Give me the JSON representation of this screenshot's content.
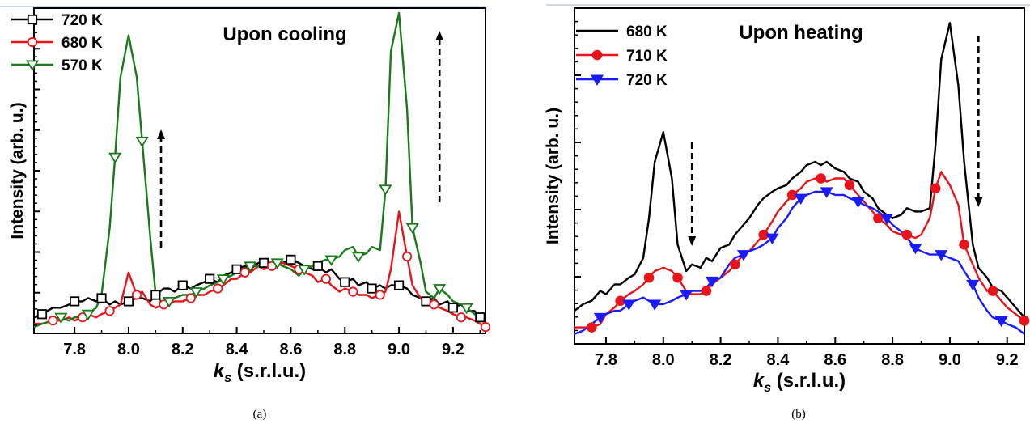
{
  "chart_data": [
    {
      "type": "line",
      "panel_label": "(a)",
      "title": "Upon cooling",
      "xlabel_main": "k",
      "xlabel_sub": "s",
      "xlabel_rest": " (s.r.l.u.)",
      "ylabel": "Intensity (arb. u.)",
      "xlim": [
        7.65,
        9.32
      ],
      "ylim": [
        0,
        1
      ],
      "xticks": [
        "7.8",
        "8.0",
        "8.2",
        "8.4",
        "8.6",
        "8.8",
        "9.0",
        "9.2"
      ],
      "legend_position": "top-left",
      "series": [
        {
          "name": "720 K",
          "color": "#000000",
          "marker": "open-square",
          "x": [
            7.65,
            7.68,
            7.72,
            7.75,
            7.78,
            7.8,
            7.83,
            7.85,
            7.88,
            7.9,
            7.93,
            7.95,
            7.97,
            8.0,
            8.03,
            8.05,
            8.08,
            8.1,
            8.13,
            8.15,
            8.17,
            8.2,
            8.23,
            8.25,
            8.28,
            8.3,
            8.33,
            8.35,
            8.38,
            8.4,
            8.43,
            8.45,
            8.48,
            8.5,
            8.53,
            8.55,
            8.57,
            8.6,
            8.63,
            8.65,
            8.68,
            8.7,
            8.73,
            8.75,
            8.78,
            8.8,
            8.83,
            8.85,
            8.88,
            8.9,
            8.93,
            8.95,
            8.97,
            9.0,
            9.03,
            9.05,
            9.08,
            9.1,
            9.13,
            9.15,
            9.18,
            9.2,
            9.23,
            9.25,
            9.28,
            9.3,
            9.32
          ],
          "y": [
            0.05,
            0.06,
            0.08,
            0.08,
            0.09,
            0.1,
            0.1,
            0.11,
            0.1,
            0.11,
            0.09,
            0.1,
            0.09,
            0.1,
            0.11,
            0.11,
            0.1,
            0.12,
            0.14,
            0.14,
            0.13,
            0.15,
            0.14,
            0.15,
            0.16,
            0.17,
            0.16,
            0.18,
            0.19,
            0.2,
            0.21,
            0.2,
            0.22,
            0.22,
            0.21,
            0.22,
            0.22,
            0.23,
            0.22,
            0.21,
            0.2,
            0.21,
            0.19,
            0.2,
            0.17,
            0.16,
            0.17,
            0.15,
            0.16,
            0.14,
            0.15,
            0.14,
            0.15,
            0.15,
            0.14,
            0.12,
            0.11,
            0.1,
            0.11,
            0.09,
            0.1,
            0.08,
            0.09,
            0.07,
            0.07,
            0.05,
            0.04
          ]
        },
        {
          "name": "680 K",
          "color": "#e8141b",
          "marker": "open-circle",
          "x": [
            7.65,
            7.68,
            7.72,
            7.75,
            7.78,
            7.8,
            7.83,
            7.85,
            7.88,
            7.9,
            7.93,
            7.95,
            7.97,
            8.0,
            8.03,
            8.05,
            8.08,
            8.1,
            8.13,
            8.15,
            8.17,
            8.2,
            8.23,
            8.25,
            8.28,
            8.3,
            8.33,
            8.35,
            8.38,
            8.4,
            8.43,
            8.45,
            8.48,
            8.5,
            8.53,
            8.55,
            8.57,
            8.6,
            8.63,
            8.65,
            8.68,
            8.7,
            8.73,
            8.75,
            8.78,
            8.8,
            8.83,
            8.85,
            8.88,
            8.9,
            8.93,
            8.95,
            8.97,
            9.0,
            9.03,
            9.05,
            9.08,
            9.1,
            9.13,
            9.15,
            9.18,
            9.2,
            9.23,
            9.25,
            9.28,
            9.3,
            9.32
          ],
          "y": [
            0.03,
            0.03,
            0.04,
            0.04,
            0.05,
            0.04,
            0.05,
            0.06,
            0.05,
            0.06,
            0.07,
            0.08,
            0.09,
            0.19,
            0.12,
            0.13,
            0.09,
            0.08,
            0.09,
            0.09,
            0.1,
            0.1,
            0.11,
            0.12,
            0.12,
            0.13,
            0.14,
            0.15,
            0.17,
            0.17,
            0.19,
            0.19,
            0.21,
            0.2,
            0.21,
            0.21,
            0.22,
            0.21,
            0.2,
            0.19,
            0.18,
            0.16,
            0.17,
            0.15,
            0.13,
            0.14,
            0.13,
            0.12,
            0.12,
            0.11,
            0.12,
            0.13,
            0.2,
            0.38,
            0.24,
            0.15,
            0.11,
            0.1,
            0.09,
            0.08,
            0.07,
            0.06,
            0.05,
            0.05,
            0.04,
            0.03,
            0.02
          ]
        },
        {
          "name": "570 K",
          "color": "#1a7a1a",
          "marker": "open-triangle-down",
          "x": [
            7.65,
            7.68,
            7.72,
            7.75,
            7.78,
            7.8,
            7.83,
            7.85,
            7.88,
            7.9,
            7.93,
            7.95,
            7.97,
            8.0,
            8.03,
            8.05,
            8.08,
            8.1,
            8.13,
            8.15,
            8.17,
            8.2,
            8.23,
            8.25,
            8.28,
            8.3,
            8.33,
            8.35,
            8.38,
            8.4,
            8.43,
            8.45,
            8.48,
            8.5,
            8.53,
            8.55,
            8.57,
            8.6,
            8.63,
            8.65,
            8.68,
            8.7,
            8.73,
            8.75,
            8.78,
            8.8,
            8.83,
            8.85,
            8.88,
            8.9,
            8.93,
            8.95,
            8.97,
            9.0,
            9.03,
            9.05,
            9.08,
            9.1,
            9.13,
            9.15,
            9.18,
            9.2,
            9.23,
            9.25,
            9.28,
            9.3,
            9.32
          ],
          "y": [
            0.02,
            0.03,
            0.04,
            0.05,
            0.04,
            0.05,
            0.05,
            0.06,
            0.08,
            0.12,
            0.33,
            0.55,
            0.8,
            0.93,
            0.8,
            0.6,
            0.3,
            0.12,
            0.09,
            0.1,
            0.11,
            0.12,
            0.12,
            0.13,
            0.14,
            0.15,
            0.16,
            0.17,
            0.18,
            0.19,
            0.2,
            0.21,
            0.21,
            0.22,
            0.21,
            0.22,
            0.21,
            0.2,
            0.18,
            0.2,
            0.21,
            0.22,
            0.23,
            0.23,
            0.24,
            0.26,
            0.27,
            0.24,
            0.25,
            0.27,
            0.26,
            0.45,
            0.88,
            1.0,
            0.7,
            0.33,
            0.22,
            0.13,
            0.11,
            0.14,
            0.12,
            0.1,
            0.09,
            0.08,
            0.06,
            0.05,
            0.04
          ]
        }
      ],
      "arrows": [
        {
          "x": 8.12,
          "direction": "up"
        },
        {
          "x": 9.15,
          "direction": "up"
        }
      ]
    },
    {
      "type": "line",
      "panel_label": "(b)",
      "title": "Upon heating",
      "xlabel_main": "k",
      "xlabel_sub": "s",
      "xlabel_rest": " (s.r.l.u.)",
      "ylabel": "Intensity (arb. u.)",
      "xlim": [
        7.69,
        9.26
      ],
      "ylim": [
        0,
        1
      ],
      "xticks": [
        "7.8",
        "8.0",
        "8.2",
        "8.4",
        "8.6",
        "8.8",
        "9.0",
        "9.2"
      ],
      "legend_position": "top-left",
      "series": [
        {
          "name": "680 K",
          "color": "#000000",
          "marker": "none",
          "x": [
            7.69,
            7.72,
            7.75,
            7.78,
            7.8,
            7.83,
            7.85,
            7.88,
            7.9,
            7.93,
            7.95,
            7.97,
            8.0,
            8.03,
            8.05,
            8.08,
            8.1,
            8.13,
            8.15,
            8.17,
            8.2,
            8.23,
            8.25,
            8.28,
            8.3,
            8.33,
            8.35,
            8.38,
            8.4,
            8.43,
            8.45,
            8.48,
            8.5,
            8.53,
            8.55,
            8.57,
            8.6,
            8.63,
            8.65,
            8.68,
            8.7,
            8.73,
            8.75,
            8.78,
            8.8,
            8.83,
            8.85,
            8.88,
            8.9,
            8.93,
            8.95,
            8.97,
            9.0,
            9.03,
            9.05,
            9.08,
            9.1,
            9.13,
            9.15,
            9.18,
            9.2,
            9.23,
            9.26
          ],
          "y": [
            0.1,
            0.12,
            0.13,
            0.16,
            0.15,
            0.18,
            0.18,
            0.2,
            0.21,
            0.26,
            0.38,
            0.55,
            0.64,
            0.5,
            0.3,
            0.22,
            0.24,
            0.23,
            0.26,
            0.25,
            0.29,
            0.3,
            0.33,
            0.36,
            0.38,
            0.42,
            0.44,
            0.46,
            0.47,
            0.48,
            0.5,
            0.52,
            0.54,
            0.55,
            0.54,
            0.55,
            0.53,
            0.52,
            0.5,
            0.49,
            0.46,
            0.44,
            0.41,
            0.39,
            0.38,
            0.39,
            0.41,
            0.4,
            0.4,
            0.41,
            0.6,
            0.86,
            0.97,
            0.78,
            0.55,
            0.3,
            0.23,
            0.2,
            0.17,
            0.16,
            0.14,
            0.11,
            0.08
          ]
        },
        {
          "name": "710 K",
          "color": "#e8141b",
          "marker": "filled-circle",
          "x": [
            7.69,
            7.72,
            7.75,
            7.78,
            7.8,
            7.83,
            7.85,
            7.88,
            7.9,
            7.93,
            7.95,
            7.97,
            8.0,
            8.03,
            8.05,
            8.08,
            8.1,
            8.13,
            8.15,
            8.17,
            8.2,
            8.23,
            8.25,
            8.28,
            8.3,
            8.33,
            8.35,
            8.38,
            8.4,
            8.43,
            8.45,
            8.48,
            8.5,
            8.53,
            8.55,
            8.57,
            8.6,
            8.63,
            8.65,
            8.68,
            8.7,
            8.73,
            8.75,
            8.78,
            8.8,
            8.83,
            8.85,
            8.88,
            8.9,
            8.93,
            8.95,
            8.97,
            9.0,
            9.03,
            9.05,
            9.08,
            9.1,
            9.13,
            9.15,
            9.18,
            9.2,
            9.23,
            9.26
          ],
          "y": [
            0.05,
            0.05,
            0.05,
            0.06,
            0.09,
            0.11,
            0.13,
            0.15,
            0.16,
            0.18,
            0.2,
            0.22,
            0.23,
            0.22,
            0.2,
            0.16,
            0.15,
            0.15,
            0.16,
            0.18,
            0.2,
            0.22,
            0.24,
            0.27,
            0.28,
            0.31,
            0.33,
            0.37,
            0.4,
            0.43,
            0.45,
            0.47,
            0.49,
            0.5,
            0.5,
            0.49,
            0.5,
            0.5,
            0.48,
            0.45,
            0.43,
            0.4,
            0.38,
            0.36,
            0.34,
            0.33,
            0.33,
            0.32,
            0.33,
            0.38,
            0.47,
            0.52,
            0.48,
            0.42,
            0.3,
            0.24,
            0.2,
            0.16,
            0.16,
            0.13,
            0.11,
            0.09,
            0.07
          ]
        },
        {
          "name": "720 K",
          "color": "#1a1aff",
          "marker": "filled-triangle-down",
          "x": [
            7.69,
            7.72,
            7.75,
            7.78,
            7.8,
            7.83,
            7.85,
            7.88,
            7.9,
            7.93,
            7.95,
            7.97,
            8.0,
            8.03,
            8.05,
            8.08,
            8.1,
            8.13,
            8.15,
            8.17,
            8.2,
            8.23,
            8.25,
            8.28,
            8.3,
            8.33,
            8.35,
            8.38,
            8.4,
            8.43,
            8.45,
            8.48,
            8.5,
            8.53,
            8.55,
            8.57,
            8.6,
            8.63,
            8.65,
            8.68,
            8.7,
            8.73,
            8.75,
            8.78,
            8.8,
            8.83,
            8.85,
            8.88,
            8.9,
            8.93,
            8.95,
            8.97,
            9.0,
            9.03,
            9.05,
            9.08,
            9.1,
            9.13,
            9.15,
            9.18,
            9.2,
            9.23,
            9.26
          ],
          "y": [
            0.03,
            0.04,
            0.06,
            0.08,
            0.09,
            0.1,
            0.1,
            0.12,
            0.13,
            0.14,
            0.13,
            0.12,
            0.12,
            0.13,
            0.14,
            0.15,
            0.16,
            0.16,
            0.17,
            0.19,
            0.2,
            0.24,
            0.26,
            0.27,
            0.28,
            0.29,
            0.3,
            0.32,
            0.35,
            0.38,
            0.41,
            0.44,
            0.45,
            0.46,
            0.46,
            0.46,
            0.45,
            0.45,
            0.44,
            0.43,
            0.42,
            0.41,
            0.4,
            0.38,
            0.36,
            0.34,
            0.32,
            0.29,
            0.28,
            0.27,
            0.27,
            0.27,
            0.26,
            0.25,
            0.22,
            0.18,
            0.14,
            0.1,
            0.08,
            0.07,
            0.06,
            0.05,
            0.03
          ]
        }
      ],
      "arrows": [
        {
          "x": 8.1,
          "direction": "down"
        },
        {
          "x": 9.1,
          "direction": "down"
        }
      ]
    }
  ]
}
